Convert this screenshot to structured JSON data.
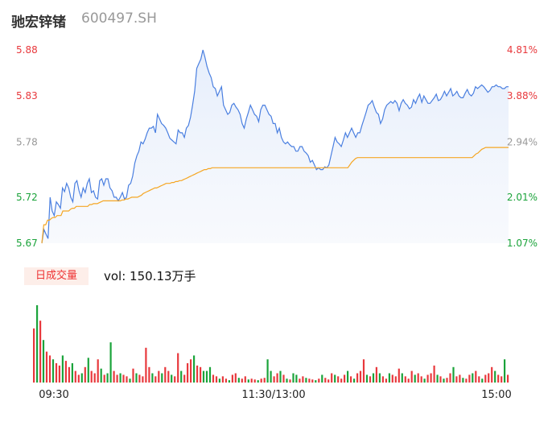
{
  "header": {
    "name": "驰宏锌锗",
    "code": "600497.SH"
  },
  "volume": {
    "tab_label": "日成交量",
    "summary": "vol: 150.13万手"
  },
  "colors": {
    "price_line": "#4a7fe0",
    "avg_line": "#f5a623",
    "up": "#e8383c",
    "down": "#1aa33a",
    "neutral_axis": "#999999"
  },
  "chart_data": {
    "type": "line",
    "title": "",
    "xlabel": "",
    "ylabel": "",
    "x_tick_labels": [
      "09:30",
      "11:30/13:00",
      "15:00"
    ],
    "ylim": [
      5.67,
      5.88
    ],
    "y_left_ticks": [
      {
        "value": 5.88,
        "label": "5.88",
        "color": "#e8383c"
      },
      {
        "value": 5.83,
        "label": "5.83",
        "color": "#e8383c"
      },
      {
        "value": 5.78,
        "label": "5.78",
        "color": "#999999"
      },
      {
        "value": 5.72,
        "label": "5.72",
        "color": "#1aa33a"
      },
      {
        "value": 5.67,
        "label": "5.67",
        "color": "#1aa33a"
      }
    ],
    "y_right_ticks": [
      {
        "value": 5.88,
        "label": "4.81%",
        "color": "#e8383c"
      },
      {
        "value": 5.83,
        "label": "3.88%",
        "color": "#e8383c"
      },
      {
        "value": 5.78,
        "label": "2.94%",
        "color": "#999999"
      },
      {
        "value": 5.72,
        "label": "2.01%",
        "color": "#1aa33a"
      },
      {
        "value": 5.67,
        "label": "1.07%",
        "color": "#1aa33a"
      }
    ],
    "series": [
      {
        "values": [
          5.67,
          5.685,
          5.68,
          5.675,
          5.72,
          5.705,
          5.7,
          5.715,
          5.712,
          5.708,
          5.73,
          5.726,
          5.735,
          5.73,
          5.72,
          5.715,
          5.735,
          5.738,
          5.727,
          5.72,
          5.73,
          5.725,
          5.735,
          5.74,
          5.725,
          5.727,
          5.72,
          5.718,
          5.738,
          5.74,
          5.733,
          5.74,
          5.74,
          5.73,
          5.727,
          5.72,
          5.72,
          5.716,
          5.72,
          5.725,
          5.718,
          5.72,
          5.733,
          5.735,
          5.743,
          5.757,
          5.765,
          5.77,
          5.78,
          5.778,
          5.783,
          5.79,
          5.795,
          5.795,
          5.797,
          5.79,
          5.81,
          5.805,
          5.8,
          5.798,
          5.795,
          5.79,
          5.784,
          5.782,
          5.78,
          5.778,
          5.793,
          5.79,
          5.79,
          5.785,
          5.795,
          5.798,
          5.807,
          5.82,
          5.835,
          5.86,
          5.865,
          5.87,
          5.88,
          5.872,
          5.862,
          5.855,
          5.85,
          5.84,
          5.838,
          5.83,
          5.835,
          5.84,
          5.82,
          5.815,
          5.81,
          5.812,
          5.82,
          5.822,
          5.818,
          5.815,
          5.81,
          5.8,
          5.795,
          5.805,
          5.812,
          5.82,
          5.815,
          5.81,
          5.808,
          5.802,
          5.815,
          5.82,
          5.82,
          5.815,
          5.81,
          5.808,
          5.8,
          5.8,
          5.79,
          5.795,
          5.785,
          5.78,
          5.778,
          5.78,
          5.777,
          5.775,
          5.775,
          5.77,
          5.77,
          5.775,
          5.775,
          5.77,
          5.768,
          5.765,
          5.758,
          5.76,
          5.755,
          5.75,
          5.752,
          5.75,
          5.75,
          5.753,
          5.752,
          5.755,
          5.765,
          5.775,
          5.785,
          5.78,
          5.778,
          5.775,
          5.782,
          5.79,
          5.785,
          5.79,
          5.795,
          5.79,
          5.785,
          5.79,
          5.79,
          5.798,
          5.805,
          5.812,
          5.82,
          5.822,
          5.825,
          5.818,
          5.812,
          5.81,
          5.8,
          5.805,
          5.815,
          5.82,
          5.822,
          5.824,
          5.822,
          5.825,
          5.822,
          5.814,
          5.822,
          5.826,
          5.822,
          5.82,
          5.816,
          5.818,
          5.826,
          5.822,
          5.828,
          5.832,
          5.823,
          5.83,
          5.826,
          5.822,
          5.822,
          5.825,
          5.828,
          5.832,
          5.825,
          5.826,
          5.83,
          5.835,
          5.83,
          5.834,
          5.838,
          5.83,
          5.832,
          5.835,
          5.83,
          5.828,
          5.828,
          5.833,
          5.837,
          5.832,
          5.83,
          5.833,
          5.84,
          5.838,
          5.84,
          5.842,
          5.84,
          5.837,
          5.834,
          5.836,
          5.84,
          5.84,
          5.842,
          5.84,
          5.84,
          5.838,
          5.838,
          5.84,
          5.84
        ]
      },
      {
        "values": [
          5.67,
          5.69,
          5.69,
          5.695,
          5.695,
          5.697,
          5.698,
          5.698,
          5.7,
          5.7,
          5.7,
          5.705,
          5.705,
          5.705,
          5.705,
          5.707,
          5.708,
          5.708,
          5.71,
          5.71,
          5.71,
          5.71,
          5.71,
          5.71,
          5.71,
          5.712,
          5.712,
          5.713,
          5.713,
          5.713,
          5.714,
          5.715,
          5.716,
          5.716,
          5.716,
          5.716,
          5.716,
          5.716,
          5.716,
          5.716,
          5.716,
          5.716,
          5.717,
          5.717,
          5.718,
          5.718,
          5.719,
          5.72,
          5.72,
          5.72,
          5.72,
          5.721,
          5.722,
          5.724,
          5.725,
          5.726,
          5.727,
          5.728,
          5.729,
          5.73,
          5.73,
          5.731,
          5.732,
          5.733,
          5.734,
          5.735,
          5.735,
          5.735,
          5.736,
          5.736,
          5.737,
          5.737,
          5.738,
          5.738,
          5.739,
          5.74,
          5.741,
          5.742,
          5.743,
          5.744,
          5.745,
          5.746,
          5.747,
          5.748,
          5.749,
          5.75,
          5.75,
          5.751,
          5.751,
          5.752,
          5.752,
          5.752,
          5.752,
          5.752,
          5.752,
          5.752,
          5.752,
          5.752,
          5.752,
          5.752,
          5.752,
          5.752,
          5.752,
          5.752,
          5.752,
          5.752,
          5.752,
          5.752,
          5.752,
          5.752,
          5.752,
          5.752,
          5.752,
          5.752,
          5.752,
          5.752,
          5.752,
          5.752,
          5.752,
          5.752,
          5.752,
          5.752,
          5.752,
          5.752,
          5.752,
          5.752,
          5.752,
          5.752,
          5.752,
          5.752,
          5.752,
          5.752,
          5.752,
          5.752,
          5.752,
          5.752,
          5.752,
          5.752,
          5.752,
          5.752,
          5.752,
          5.752,
          5.752,
          5.752,
          5.752,
          5.752,
          5.752,
          5.752,
          5.752,
          5.752,
          5.752,
          5.752,
          5.752,
          5.752,
          5.752,
          5.752,
          5.752,
          5.752,
          5.752,
          5.752,
          5.752,
          5.755,
          5.758,
          5.76,
          5.762,
          5.763,
          5.763,
          5.763,
          5.763,
          5.763,
          5.763,
          5.763,
          5.763,
          5.763,
          5.763,
          5.763,
          5.763,
          5.763,
          5.763,
          5.763,
          5.763,
          5.763,
          5.763,
          5.763,
          5.763,
          5.763,
          5.763,
          5.763,
          5.763,
          5.763,
          5.763,
          5.763,
          5.763,
          5.763,
          5.763,
          5.763,
          5.763,
          5.763,
          5.763,
          5.763,
          5.763,
          5.763,
          5.763,
          5.763,
          5.763,
          5.763,
          5.763,
          5.763,
          5.763,
          5.763,
          5.763,
          5.763,
          5.763,
          5.763,
          5.763,
          5.763,
          5.763,
          5.763,
          5.763,
          5.763,
          5.763,
          5.763,
          5.763,
          5.763,
          5.763,
          5.763,
          5.765,
          5.767,
          5.768,
          5.77,
          5.772,
          5.773,
          5.774,
          5.774,
          5.774,
          5.774,
          5.774,
          5.774,
          5.774,
          5.774,
          5.774,
          5.774,
          5.774,
          5.774,
          5.774
        ]
      }
    ],
    "volume_bars": [
      {
        "v": 0.7,
        "d": "up"
      },
      {
        "v": 1.0,
        "d": "down"
      },
      {
        "v": 0.8,
        "d": "up"
      },
      {
        "v": 0.55,
        "d": "down"
      },
      {
        "v": 0.4,
        "d": "up"
      },
      {
        "v": 0.35,
        "d": "up"
      },
      {
        "v": 0.3,
        "d": "down"
      },
      {
        "v": 0.25,
        "d": "up"
      },
      {
        "v": 0.22,
        "d": "up"
      },
      {
        "v": 0.35,
        "d": "down"
      },
      {
        "v": 0.28,
        "d": "up"
      },
      {
        "v": 0.2,
        "d": "up"
      },
      {
        "v": 0.25,
        "d": "down"
      },
      {
        "v": 0.15,
        "d": "up"
      },
      {
        "v": 0.1,
        "d": "up"
      },
      {
        "v": 0.12,
        "d": "down"
      },
      {
        "v": 0.2,
        "d": "up"
      },
      {
        "v": 0.32,
        "d": "down"
      },
      {
        "v": 0.15,
        "d": "up"
      },
      {
        "v": 0.12,
        "d": "up"
      },
      {
        "v": 0.3,
        "d": "up"
      },
      {
        "v": 0.18,
        "d": "down"
      },
      {
        "v": 0.1,
        "d": "up"
      },
      {
        "v": 0.12,
        "d": "down"
      },
      {
        "v": 0.52,
        "d": "down"
      },
      {
        "v": 0.15,
        "d": "up"
      },
      {
        "v": 0.1,
        "d": "up"
      },
      {
        "v": 0.12,
        "d": "down"
      },
      {
        "v": 0.1,
        "d": "up"
      },
      {
        "v": 0.08,
        "d": "up"
      },
      {
        "v": 0.05,
        "d": "down"
      },
      {
        "v": 0.18,
        "d": "up"
      },
      {
        "v": 0.12,
        "d": "down"
      },
      {
        "v": 0.1,
        "d": "up"
      },
      {
        "v": 0.08,
        "d": "up"
      },
      {
        "v": 0.45,
        "d": "up"
      },
      {
        "v": 0.2,
        "d": "up"
      },
      {
        "v": 0.12,
        "d": "down"
      },
      {
        "v": 0.08,
        "d": "up"
      },
      {
        "v": 0.15,
        "d": "up"
      },
      {
        "v": 0.12,
        "d": "down"
      },
      {
        "v": 0.2,
        "d": "up"
      },
      {
        "v": 0.15,
        "d": "up"
      },
      {
        "v": 0.1,
        "d": "down"
      },
      {
        "v": 0.08,
        "d": "up"
      },
      {
        "v": 0.38,
        "d": "up"
      },
      {
        "v": 0.15,
        "d": "down"
      },
      {
        "v": 0.1,
        "d": "up"
      },
      {
        "v": 0.25,
        "d": "up"
      },
      {
        "v": 0.3,
        "d": "up"
      },
      {
        "v": 0.35,
        "d": "down"
      },
      {
        "v": 0.22,
        "d": "up"
      },
      {
        "v": 0.2,
        "d": "up"
      },
      {
        "v": 0.15,
        "d": "down"
      },
      {
        "v": 0.15,
        "d": "down"
      },
      {
        "v": 0.2,
        "d": "down"
      },
      {
        "v": 0.1,
        "d": "up"
      },
      {
        "v": 0.08,
        "d": "up"
      },
      {
        "v": 0.05,
        "d": "down"
      },
      {
        "v": 0.08,
        "d": "up"
      },
      {
        "v": 0.05,
        "d": "up"
      },
      {
        "v": 0.03,
        "d": "down"
      },
      {
        "v": 0.1,
        "d": "up"
      },
      {
        "v": 0.12,
        "d": "up"
      },
      {
        "v": 0.06,
        "d": "down"
      },
      {
        "v": 0.05,
        "d": "up"
      },
      {
        "v": 0.08,
        "d": "up"
      },
      {
        "v": 0.04,
        "d": "down"
      },
      {
        "v": 0.05,
        "d": "up"
      },
      {
        "v": 0.04,
        "d": "up"
      },
      {
        "v": 0.03,
        "d": "down"
      },
      {
        "v": 0.05,
        "d": "up"
      },
      {
        "v": 0.06,
        "d": "up"
      },
      {
        "v": 0.3,
        "d": "down"
      },
      {
        "v": 0.15,
        "d": "down"
      },
      {
        "v": 0.08,
        "d": "up"
      },
      {
        "v": 0.12,
        "d": "up"
      },
      {
        "v": 0.15,
        "d": "down"
      },
      {
        "v": 0.1,
        "d": "up"
      },
      {
        "v": 0.05,
        "d": "down"
      },
      {
        "v": 0.04,
        "d": "up"
      },
      {
        "v": 0.12,
        "d": "down"
      },
      {
        "v": 0.1,
        "d": "down"
      },
      {
        "v": 0.05,
        "d": "up"
      },
      {
        "v": 0.08,
        "d": "up"
      },
      {
        "v": 0.06,
        "d": "down"
      },
      {
        "v": 0.05,
        "d": "up"
      },
      {
        "v": 0.04,
        "d": "up"
      },
      {
        "v": 0.03,
        "d": "down"
      },
      {
        "v": 0.05,
        "d": "up"
      },
      {
        "v": 0.1,
        "d": "down"
      },
      {
        "v": 0.06,
        "d": "up"
      },
      {
        "v": 0.04,
        "d": "up"
      },
      {
        "v": 0.12,
        "d": "up"
      },
      {
        "v": 0.1,
        "d": "down"
      },
      {
        "v": 0.08,
        "d": "up"
      },
      {
        "v": 0.05,
        "d": "up"
      },
      {
        "v": 0.1,
        "d": "up"
      },
      {
        "v": 0.15,
        "d": "down"
      },
      {
        "v": 0.08,
        "d": "up"
      },
      {
        "v": 0.05,
        "d": "down"
      },
      {
        "v": 0.12,
        "d": "up"
      },
      {
        "v": 0.15,
        "d": "up"
      },
      {
        "v": 0.3,
        "d": "up"
      },
      {
        "v": 0.1,
        "d": "down"
      },
      {
        "v": 0.08,
        "d": "up"
      },
      {
        "v": 0.12,
        "d": "down"
      },
      {
        "v": 0.2,
        "d": "up"
      },
      {
        "v": 0.12,
        "d": "down"
      },
      {
        "v": 0.08,
        "d": "up"
      },
      {
        "v": 0.05,
        "d": "up"
      },
      {
        "v": 0.12,
        "d": "down"
      },
      {
        "v": 0.1,
        "d": "up"
      },
      {
        "v": 0.08,
        "d": "up"
      },
      {
        "v": 0.18,
        "d": "up"
      },
      {
        "v": 0.12,
        "d": "down"
      },
      {
        "v": 0.08,
        "d": "up"
      },
      {
        "v": 0.05,
        "d": "up"
      },
      {
        "v": 0.15,
        "d": "up"
      },
      {
        "v": 0.1,
        "d": "down"
      },
      {
        "v": 0.12,
        "d": "up"
      },
      {
        "v": 0.08,
        "d": "up"
      },
      {
        "v": 0.05,
        "d": "down"
      },
      {
        "v": 0.1,
        "d": "up"
      },
      {
        "v": 0.12,
        "d": "up"
      },
      {
        "v": 0.22,
        "d": "up"
      },
      {
        "v": 0.1,
        "d": "down"
      },
      {
        "v": 0.08,
        "d": "up"
      },
      {
        "v": 0.05,
        "d": "down"
      },
      {
        "v": 0.06,
        "d": "up"
      },
      {
        "v": 0.12,
        "d": "up"
      },
      {
        "v": 0.2,
        "d": "down"
      },
      {
        "v": 0.08,
        "d": "up"
      },
      {
        "v": 0.1,
        "d": "up"
      },
      {
        "v": 0.06,
        "d": "down"
      },
      {
        "v": 0.05,
        "d": "up"
      },
      {
        "v": 0.1,
        "d": "up"
      },
      {
        "v": 0.12,
        "d": "down"
      },
      {
        "v": 0.15,
        "d": "up"
      },
      {
        "v": 0.08,
        "d": "up"
      },
      {
        "v": 0.05,
        "d": "down"
      },
      {
        "v": 0.1,
        "d": "up"
      },
      {
        "v": 0.12,
        "d": "up"
      },
      {
        "v": 0.2,
        "d": "up"
      },
      {
        "v": 0.15,
        "d": "down"
      },
      {
        "v": 0.1,
        "d": "up"
      },
      {
        "v": 0.08,
        "d": "up"
      },
      {
        "v": 0.3,
        "d": "down"
      },
      {
        "v": 0.1,
        "d": "up"
      }
    ]
  }
}
